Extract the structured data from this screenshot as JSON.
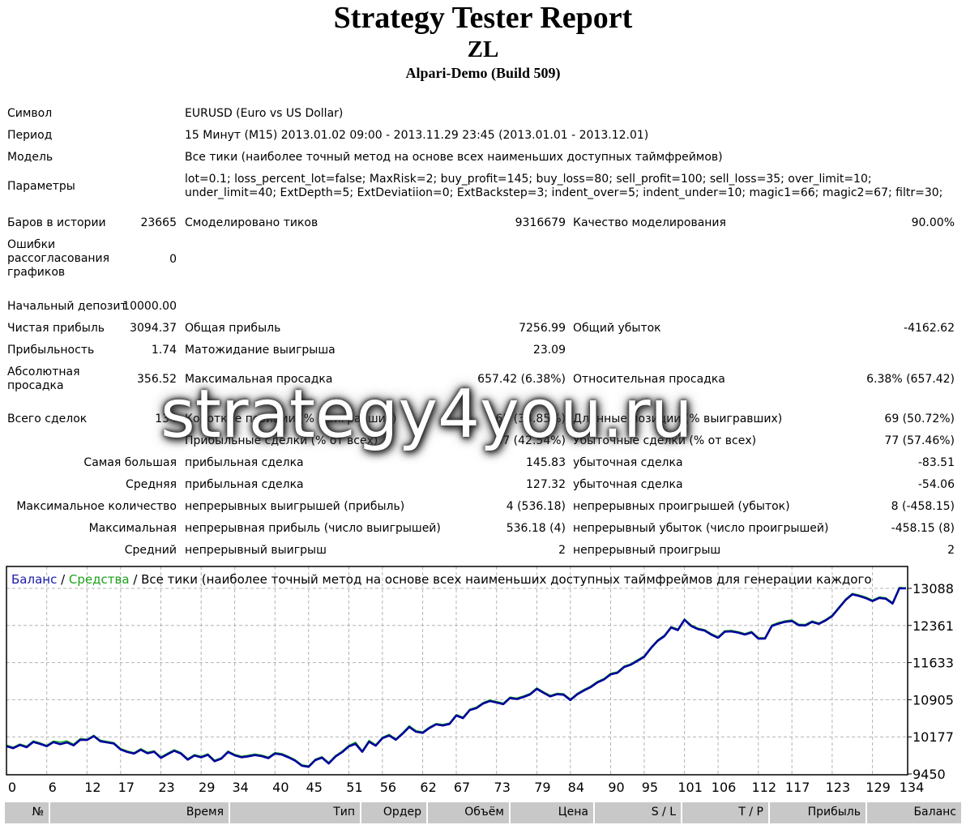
{
  "header": {
    "title": "Strategy Tester Report",
    "name": "ZL",
    "server": "Alpari-Demo (Build 509)"
  },
  "info": {
    "symbol_label": "Символ",
    "symbol_value": "EURUSD (Euro vs US Dollar)",
    "period_label": "Период",
    "period_value": "15 Минут (M15) 2013.01.02 09:00 - 2013.11.29 23:45 (2013.01.01 - 2013.12.01)",
    "model_label": "Модель",
    "model_value": "Все тики (наиболее точный метод на основе всех наименьших доступных таймфреймов)",
    "params_label": "Параметры",
    "params_value": "lot=0.1; loss_percent_lot=false; MaxRisk=2; buy_profit=145; buy_loss=80; sell_profit=100; sell_loss=35; over_limit=10; under_limit=40; ExtDepth=5; ExtDeviatiion=0; ExtBackstep=3; indent_over=5; indent_under=10; magic1=66; magic2=67; filtr=30;"
  },
  "stats": {
    "bars_label": "Баров в истории",
    "bars_value": "23665",
    "ticks_label": "Смоделировано тиков",
    "ticks_value": "9316679",
    "quality_label": "Качество моделирования",
    "quality_value": "90.00%",
    "errors_label": "Ошибки рассогласования графиков",
    "errors_value": "0",
    "deposit_label": "Начальный депозит",
    "deposit_value": "10000.00",
    "net_label": "Чистая прибыль",
    "net_value": "3094.37",
    "gross_profit_label": "Общая прибыль",
    "gross_profit_value": "7256.99",
    "gross_loss_label": "Общий убыток",
    "gross_loss_value": "-4162.62",
    "pf_label": "Прибыльность",
    "pf_value": "1.74",
    "expected_label": "Матожидание выигрыша",
    "expected_value": "23.09",
    "abs_dd_label": "Абсолютная просадка",
    "abs_dd_value": "356.52",
    "max_dd_label": "Максимальная просадка",
    "max_dd_value": "657.42 (6.38%)",
    "rel_dd_label": "Относительная просадка",
    "rel_dd_value": "6.38% (657.42)",
    "total_trades_label": "Всего сделок",
    "total_trades_value": "134",
    "short_label": "Короткие позиции (% выигравших)",
    "short_value": "65 (33.85%)",
    "long_label": "Длинные позиции (% выигравших)",
    "long_value": "69 (50.72%)",
    "profit_trades_label": "Прибыльные сделки (% от всех)",
    "profit_trades_value": "57 (42.54%)",
    "loss_trades_label": "Убыточные сделки (% от всех)",
    "loss_trades_value": "77 (57.46%)",
    "largest_label": "Самая большая",
    "largest_profit_label": "прибыльная сделка",
    "largest_profit_value": "145.83",
    "largest_loss_label": "убыточная сделка",
    "largest_loss_value": "-83.51",
    "average_label": "Средняя",
    "average_profit_label": "прибыльная сделка",
    "average_profit_value": "127.32",
    "average_loss_label": "убыточная сделка",
    "average_loss_value": "-54.06",
    "max_count_label": "Максимальное количество",
    "max_consec_wins_label": "непрерывных выигрышей (прибыль)",
    "max_consec_wins_value": "4 (536.18)",
    "max_consec_losses_label": "непрерывных проигрышей (убыток)",
    "max_consec_losses_value": "8 (-458.15)",
    "maximal_label": "Максимальная",
    "maximal_profit_label": "непрерывная прибыль (число выигрышей)",
    "maximal_profit_value": "536.18 (4)",
    "maximal_loss_label": "непрерывный убыток (число проигрышей)",
    "maximal_loss_value": "-458.15 (8)",
    "avg_consec_label": "Средний",
    "avg_consec_wins_label": "непрерывный выигрыш",
    "avg_consec_wins_value": "2",
    "avg_consec_losses_label": "непрерывный проигрыш",
    "avg_consec_losses_value": "2"
  },
  "watermark": "strategy4you.ru",
  "chart_data": {
    "type": "line",
    "legend": {
      "balance": "Баланс",
      "sep1": " / ",
      "equity": "Средства",
      "sep2": " / ",
      "rest": "Все тики (наиболее точный метод на основе всех наименьших доступных таймфреймов для генерации каждого"
    },
    "colors": {
      "balance": "#00009c",
      "equity": "#12b012",
      "legend_balance": "#1a1aa8",
      "legend_equity": "#1ca01c",
      "grid": "#b4b4b4"
    },
    "grid": true,
    "x_ticks": [
      "0",
      "6",
      "12",
      "17",
      "23",
      "29",
      "34",
      "40",
      "45",
      "51",
      "56",
      "62",
      "67",
      "73",
      "79",
      "84",
      "90",
      "95",
      "101",
      "106",
      "112",
      "117",
      "123",
      "129",
      "134"
    ],
    "y_ticks": [
      "13088",
      "12361",
      "11633",
      "10905",
      "10177",
      "9450"
    ],
    "xlim": [
      0,
      134
    ],
    "ylim": [
      9450,
      13088
    ],
    "series": [
      {
        "name": "Баланс",
        "x": [
          0,
          1,
          2,
          3,
          4,
          5,
          6,
          7,
          8,
          9,
          10,
          11,
          12,
          13,
          14,
          15,
          16,
          17,
          18,
          19,
          20,
          21,
          22,
          23,
          24,
          25,
          26,
          27,
          28,
          29,
          30,
          31,
          32,
          33,
          34,
          35,
          36,
          37,
          38,
          39,
          40,
          41,
          42,
          43,
          44,
          45,
          46,
          47,
          48,
          49,
          50,
          51,
          52,
          53,
          54,
          55,
          56,
          57,
          58,
          59,
          60,
          61,
          62,
          63,
          64,
          65,
          66,
          67,
          68,
          69,
          70,
          71,
          72,
          73,
          74,
          75,
          76,
          77,
          78,
          79,
          80,
          81,
          82,
          83,
          84,
          85,
          86,
          87,
          88,
          89,
          90,
          91,
          92,
          93,
          94,
          95,
          96,
          97,
          98,
          99,
          100,
          101,
          102,
          103,
          104,
          105,
          106,
          107,
          108,
          109,
          110,
          111,
          112,
          113,
          114,
          115,
          116,
          117,
          118,
          119,
          120,
          121,
          122,
          123,
          124,
          125,
          126,
          127,
          128,
          129,
          130,
          131,
          132,
          133,
          134
        ],
        "y": [
          9995,
          9955,
          10018,
          9975,
          10078,
          10040,
          9993,
          10075,
          10035,
          10068,
          10010,
          10120,
          10115,
          10190,
          10090,
          10068,
          10045,
          9930,
          9880,
          9848,
          9925,
          9855,
          9885,
          9765,
          9838,
          9905,
          9848,
          9730,
          9810,
          9775,
          9825,
          9700,
          9750,
          9880,
          9815,
          9778,
          9795,
          9820,
          9800,
          9760,
          9850,
          9830,
          9775,
          9710,
          9610,
          9590,
          9720,
          9770,
          9655,
          9790,
          9878,
          9990,
          10040,
          9885,
          10080,
          10005,
          10150,
          10205,
          10120,
          10238,
          10370,
          10278,
          10255,
          10350,
          10420,
          10400,
          10430,
          10595,
          10545,
          10700,
          10740,
          10830,
          10880,
          10850,
          10818,
          10938,
          10918,
          10958,
          11008,
          11118,
          11041,
          10970,
          11013,
          11002,
          10898,
          11009,
          11085,
          11150,
          11242,
          11300,
          11403,
          11432,
          11545,
          11591,
          11668,
          11746,
          11915,
          12059,
          12151,
          12320,
          12270,
          12471,
          12351,
          12289,
          12260,
          12180,
          12118,
          12238,
          12245,
          12220,
          12182,
          12224,
          12102,
          12104,
          12350,
          12397,
          12432,
          12448,
          12366,
          12361,
          12430,
          12390,
          12457,
          12545,
          12704,
          12859,
          12970,
          12938,
          12898,
          12839,
          12900,
          12884,
          12790,
          13088,
          13088
        ]
      },
      {
        "name": "Средства",
        "x": [
          0,
          1,
          2,
          3,
          4,
          5,
          6,
          7,
          8,
          9,
          10,
          11,
          12,
          13,
          14,
          15,
          16,
          17,
          18,
          19,
          20,
          21,
          22,
          23,
          24,
          25,
          26,
          27,
          28,
          29,
          30,
          31,
          32,
          33,
          34,
          35,
          36,
          37,
          38,
          39,
          40,
          41,
          42,
          43,
          44,
          45,
          46,
          47,
          48,
          49,
          50,
          51,
          52,
          53,
          54,
          55,
          56,
          57,
          58,
          59,
          60,
          61,
          62,
          63,
          64,
          65,
          66,
          67,
          68,
          69,
          70,
          71,
          72,
          73,
          74,
          75,
          76,
          77,
          78,
          79,
          80,
          81,
          82,
          83,
          84,
          85,
          86,
          87,
          88,
          89,
          90,
          91,
          92,
          93,
          94,
          95,
          96,
          97,
          98,
          99,
          100,
          101,
          102,
          103,
          104,
          105,
          106,
          107,
          108,
          109,
          110,
          111,
          112,
          113,
          114,
          115,
          116,
          117,
          118,
          119,
          120,
          121,
          122,
          123,
          124,
          125,
          126,
          127,
          128,
          129,
          130,
          131,
          132,
          133,
          134
        ],
        "y": [
          10015,
          9975,
          10038,
          9995,
          10098,
          10060,
          10013,
          10095,
          10075,
          10098,
          10035,
          10145,
          10130,
          10210,
          10110,
          10088,
          10065,
          9950,
          9900,
          9868,
          9945,
          9875,
          9905,
          9785,
          9858,
          9925,
          9868,
          9750,
          9830,
          9795,
          9845,
          9720,
          9770,
          9900,
          9835,
          9798,
          9815,
          9840,
          9820,
          9780,
          9870,
          9850,
          9795,
          9730,
          9630,
          9610,
          9740,
          9790,
          9675,
          9810,
          9898,
          10010,
          10075,
          9905,
          10110,
          10025,
          10170,
          10225,
          10140,
          10258,
          10395,
          10298,
          10275,
          10370,
          10440,
          10420,
          10450,
          10615,
          10565,
          10720,
          10760,
          10850,
          10900,
          10870,
          10838,
          10958,
          10938,
          10978,
          11028,
          11138,
          11061,
          10990,
          11033,
          11022,
          10918,
          11029,
          11105,
          11170,
          11262,
          11320,
          11423,
          11452,
          11565,
          11611,
          11688,
          11766,
          11935,
          12079,
          12171,
          12340,
          12290,
          12491,
          12371,
          12309,
          12280,
          12200,
          12138,
          12258,
          12265,
          12240,
          12202,
          12244,
          12122,
          12124,
          12370,
          12417,
          12452,
          12468,
          12386,
          12381,
          12450,
          12410,
          12477,
          12565,
          12724,
          12879,
          12990,
          12958,
          12918,
          12859,
          12920,
          12904,
          12810,
          13108,
          13098
        ]
      }
    ]
  },
  "trades_table": {
    "headers": [
      "№",
      "Время",
      "Тип",
      "Ордер",
      "Объём",
      "Цена",
      "S / L",
      "T / P",
      "Прибыль",
      "Баланс"
    ]
  }
}
